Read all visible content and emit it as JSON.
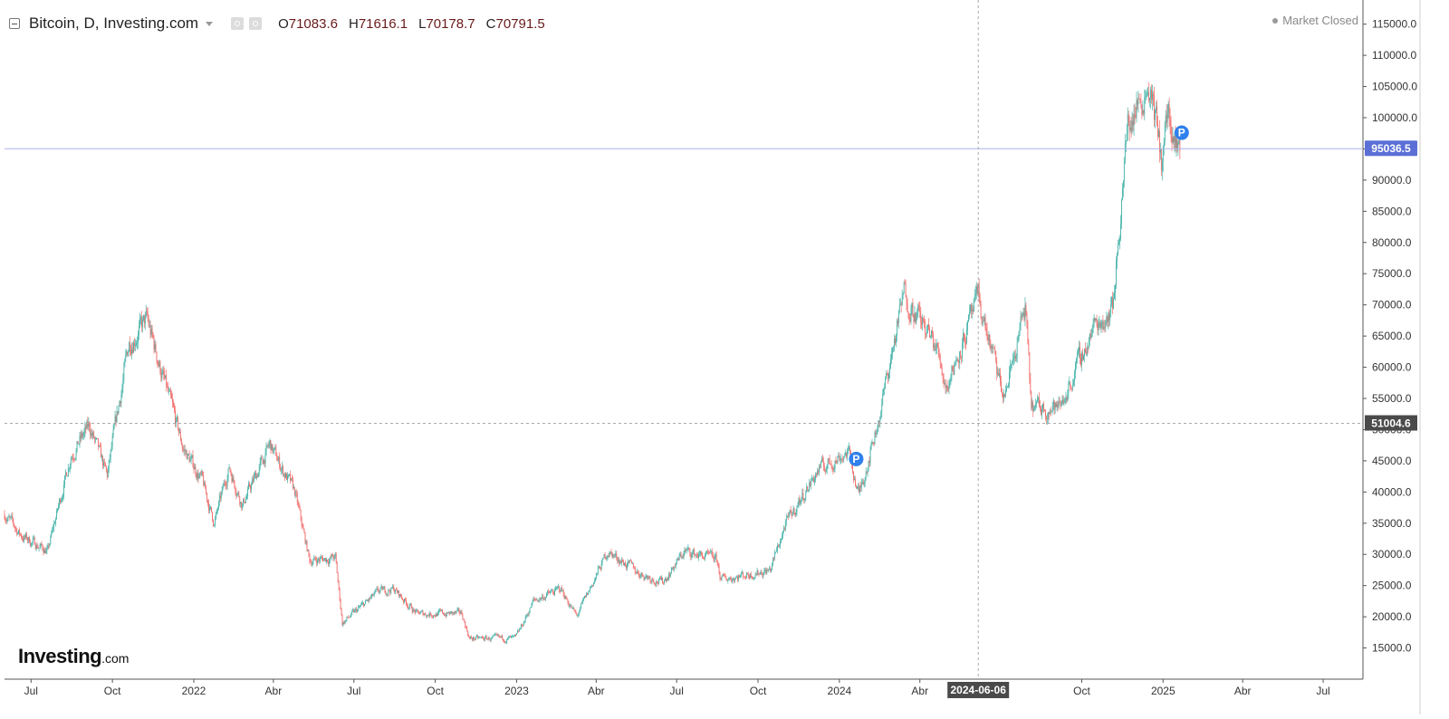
{
  "header": {
    "symbol": "Bitcoin, D, Investing.com",
    "ohlc": [
      {
        "key": "O",
        "value": "71083.6"
      },
      {
        "key": "H",
        "value": "71616.1"
      },
      {
        "key": "L",
        "value": "70178.7"
      },
      {
        "key": "C",
        "value": "70791.5"
      }
    ],
    "market_status": "Market Closed"
  },
  "watermark": {
    "brand": "Investing",
    "suffix": ".com"
  },
  "colors": {
    "up": "#26a69a",
    "down": "#ef5350",
    "last_price_badge": "#5b6fd6",
    "crosshair_badge": "#4a4a4a",
    "marker": "#2f80ed"
  },
  "chart_data": {
    "type": "candlestick",
    "title": "Bitcoin, D, Investing.com",
    "interval": "D",
    "x_range": [
      "2021-06-01",
      "2025-08-15"
    ],
    "ylim": [
      10000,
      118000
    ],
    "y_ticks": [
      15000,
      20000,
      25000,
      30000,
      35000,
      40000,
      45000,
      50000,
      55000,
      60000,
      65000,
      70000,
      75000,
      80000,
      85000,
      90000,
      95000,
      100000,
      105000,
      110000,
      115000
    ],
    "y_tick_labels": [
      "15000.0",
      "20000.0",
      "25000.0",
      "30000.0",
      "35000.0",
      "40000.0",
      "45000.0",
      "50000.0",
      "55000.0",
      "60000.0",
      "65000.0",
      "70000.0",
      "75000.0",
      "80000.0",
      "85000.0",
      "90000.0",
      "95000.0",
      "100000.0",
      "105000.0",
      "110000.0",
      "115000.0"
    ],
    "x_ticks": [
      {
        "date": "2021-07-01",
        "label": "Jul"
      },
      {
        "date": "2021-10-01",
        "label": "Oct"
      },
      {
        "date": "2022-01-01",
        "label": "2022"
      },
      {
        "date": "2022-04-01",
        "label": "Abr"
      },
      {
        "date": "2022-07-01",
        "label": "Jul"
      },
      {
        "date": "2022-10-01",
        "label": "Oct"
      },
      {
        "date": "2023-01-01",
        "label": "2023"
      },
      {
        "date": "2023-04-01",
        "label": "Abr"
      },
      {
        "date": "2023-07-01",
        "label": "Jul"
      },
      {
        "date": "2023-10-01",
        "label": "Oct"
      },
      {
        "date": "2024-01-01",
        "label": "2024"
      },
      {
        "date": "2024-04-01",
        "label": "Abr"
      },
      {
        "date": "2024-10-01",
        "label": "Oct"
      },
      {
        "date": "2025-01-01",
        "label": "2025"
      },
      {
        "date": "2025-04-01",
        "label": "Abr"
      },
      {
        "date": "2025-07-01",
        "label": "Jul"
      }
    ],
    "price_path": [
      [
        "2021-06-01",
        36500
      ],
      [
        "2021-06-20",
        33000
      ],
      [
        "2021-07-20",
        30500
      ],
      [
        "2021-08-15",
        46000
      ],
      [
        "2021-09-05",
        50500
      ],
      [
        "2021-09-25",
        42500
      ],
      [
        "2021-10-20",
        64000
      ],
      [
        "2021-11-09",
        67500
      ],
      [
        "2021-11-30",
        57000
      ],
      [
        "2021-12-20",
        47000
      ],
      [
        "2022-01-10",
        42000
      ],
      [
        "2022-01-24",
        35000
      ],
      [
        "2022-02-10",
        44000
      ],
      [
        "2022-02-25",
        38000
      ],
      [
        "2022-03-28",
        47500
      ],
      [
        "2022-04-25",
        40000
      ],
      [
        "2022-05-12",
        29000
      ],
      [
        "2022-06-10",
        29500
      ],
      [
        "2022-06-18",
        19000
      ],
      [
        "2022-07-29",
        24000
      ],
      [
        "2022-08-15",
        24500
      ],
      [
        "2022-09-10",
        20500
      ],
      [
        "2022-10-31",
        20500
      ],
      [
        "2022-11-09",
        16500
      ],
      [
        "2022-12-31",
        16500
      ],
      [
        "2023-01-20",
        22500
      ],
      [
        "2023-02-20",
        24500
      ],
      [
        "2023-03-10",
        20000
      ],
      [
        "2023-04-14",
        30500
      ],
      [
        "2023-05-20",
        27000
      ],
      [
        "2023-06-15",
        25500
      ],
      [
        "2023-07-10",
        30500
      ],
      [
        "2023-08-15",
        29200
      ],
      [
        "2023-08-20",
        26000
      ],
      [
        "2023-10-15",
        27500
      ],
      [
        "2023-10-31",
        34500
      ],
      [
        "2023-12-08",
        43500
      ],
      [
        "2024-01-11",
        46500
      ],
      [
        "2024-01-23",
        39500
      ],
      [
        "2024-02-15",
        52000
      ],
      [
        "2024-03-14",
        72000
      ],
      [
        "2024-04-20",
        63000
      ],
      [
        "2024-05-01",
        57000
      ],
      [
        "2024-06-06",
        71000
      ],
      [
        "2024-07-05",
        55000
      ],
      [
        "2024-07-29",
        69500
      ],
      [
        "2024-08-05",
        53500
      ],
      [
        "2024-09-06",
        53500
      ],
      [
        "2024-10-15",
        66500
      ],
      [
        "2024-11-05",
        69500
      ],
      [
        "2024-11-22",
        99000
      ],
      [
        "2024-12-17",
        106000
      ],
      [
        "2024-12-30",
        93000
      ],
      [
        "2025-01-07",
        101500
      ],
      [
        "2025-01-13",
        93500
      ],
      [
        "2025-01-20",
        95036.5
      ]
    ],
    "last_price": {
      "value": 95036.5,
      "label": "95036.5"
    },
    "crosshair": {
      "date": "2024-06-06",
      "date_label": "2024-06-06",
      "price": 51004.6,
      "price_label": "51004.6"
    },
    "markers": [
      {
        "date": "2024-01-20",
        "price": 45300,
        "label": "P"
      },
      {
        "date": "2025-01-22",
        "price": 97600,
        "label": "P"
      }
    ],
    "grid": false
  }
}
